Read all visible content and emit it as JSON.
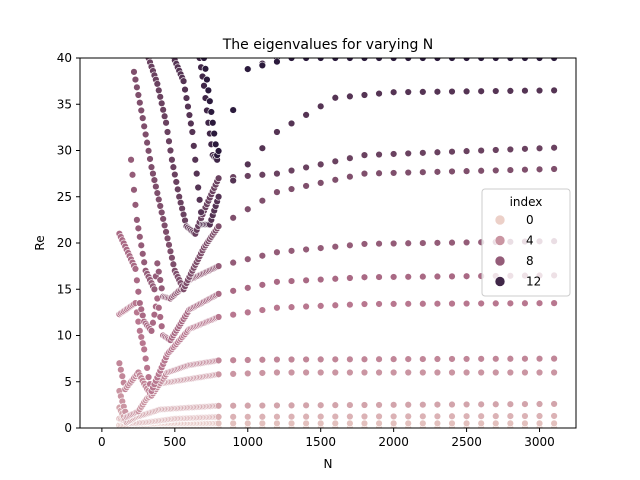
{
  "chart_data": {
    "type": "scatter",
    "title": "The eigenvalues for varying N",
    "xlabel": "N",
    "ylabel": "Re",
    "xlim": [
      -150,
      3250
    ],
    "ylim": [
      0,
      40
    ],
    "xticks": [
      0,
      500,
      1000,
      1500,
      2000,
      2500,
      3000
    ],
    "yticks": [
      0,
      5,
      10,
      15,
      20,
      25,
      30,
      35,
      40
    ],
    "grid": false,
    "legend": {
      "title": "index",
      "position": "right",
      "entries": [
        {
          "label": "0",
          "index": 0
        },
        {
          "label": "4",
          "index": 4
        },
        {
          "label": "8",
          "index": 8
        },
        {
          "label": "12",
          "index": 12
        }
      ]
    },
    "colormap": {
      "index_min": 0,
      "index_max": 13,
      "color_low": "#ecd0c8",
      "color_mid": "#b4708a",
      "color_high": "#2b1a3c"
    },
    "N_sampling": {
      "dense_start": 120,
      "dense_end": 790,
      "dense_step": 10,
      "sparse_start": 800,
      "sparse_end": 3100,
      "sparse_step": 100
    },
    "series": [
      {
        "index": 0,
        "values": [
          [
            100,
            0.0
          ],
          [
            3100,
            0.0
          ]
        ]
      },
      {
        "index": 1,
        "values": [
          [
            120,
            0.3
          ],
          [
            200,
            0.3
          ],
          [
            400,
            0.5
          ],
          [
            800,
            0.5
          ],
          [
            3100,
            0.5
          ]
        ]
      },
      {
        "index": 2,
        "values": [
          [
            120,
            1.0
          ],
          [
            200,
            0.5
          ],
          [
            300,
            0.6
          ],
          [
            500,
            1.0
          ],
          [
            800,
            1.2
          ],
          [
            3100,
            1.3
          ]
        ]
      },
      {
        "index": 3,
        "values": [
          [
            120,
            2.2
          ],
          [
            170,
            0.6
          ],
          [
            240,
            1.2
          ],
          [
            400,
            2.0
          ],
          [
            800,
            2.4
          ],
          [
            3100,
            2.6
          ]
        ]
      },
      {
        "index": 4,
        "values": [
          [
            120,
            4.0
          ],
          [
            170,
            1.2
          ],
          [
            250,
            1.8
          ],
          [
            300,
            3.0
          ],
          [
            400,
            4.8
          ],
          [
            800,
            5.8
          ],
          [
            1200,
            6.0
          ],
          [
            3100,
            6.0
          ]
        ]
      },
      {
        "index": 5,
        "values": [
          [
            120,
            7.0
          ],
          [
            160,
            4.2
          ],
          [
            250,
            6.0
          ],
          [
            300,
            4.5
          ],
          [
            340,
            3.5
          ],
          [
            450,
            6.0
          ],
          [
            600,
            6.8
          ],
          [
            800,
            7.3
          ],
          [
            1200,
            7.4
          ],
          [
            3100,
            7.5
          ]
        ]
      },
      {
        "index": 6,
        "values": [
          [
            120,
            12.3
          ],
          [
            230,
            13.5
          ],
          [
            260,
            10.5
          ],
          [
            290,
            8.5
          ],
          [
            320,
            5.5
          ],
          [
            340,
            4.0
          ],
          [
            450,
            8.0
          ],
          [
            600,
            10.7
          ],
          [
            800,
            12.0
          ],
          [
            1200,
            13.0
          ],
          [
            1800,
            13.4
          ],
          [
            3100,
            13.5
          ]
        ]
      },
      {
        "index": 7,
        "values": [
          [
            120,
            21.0
          ],
          [
            230,
            17.2
          ],
          [
            260,
            13.5
          ],
          [
            290,
            11.5
          ],
          [
            340,
            10.5
          ],
          [
            380,
            14.0
          ],
          [
            420,
            10.0
          ],
          [
            470,
            9.5
          ],
          [
            600,
            12.8
          ],
          [
            800,
            14.5
          ],
          [
            1200,
            15.8
          ],
          [
            1800,
            16.3
          ],
          [
            3100,
            16.5
          ]
        ]
      },
      {
        "index": 8,
        "values": [
          [
            200,
            29.0
          ],
          [
            240,
            22.5
          ],
          [
            300,
            17.0
          ],
          [
            360,
            15.0
          ],
          [
            380,
            17.8
          ],
          [
            420,
            14.2
          ],
          [
            470,
            14.0
          ],
          [
            540,
            15.0
          ],
          [
            600,
            16.0
          ],
          [
            800,
            17.5
          ],
          [
            1200,
            19.0
          ],
          [
            1800,
            19.9
          ],
          [
            3100,
            20.2
          ]
        ]
      },
      {
        "index": 9,
        "values": [
          [
            220,
            38.5
          ],
          [
            280,
            33.5
          ],
          [
            340,
            28.2
          ],
          [
            400,
            24.0
          ],
          [
            450,
            20.5
          ],
          [
            500,
            17.0
          ],
          [
            560,
            15.0
          ],
          [
            620,
            17.0
          ],
          [
            700,
            19.5
          ],
          [
            800,
            21.8
          ],
          [
            1200,
            25.5
          ],
          [
            1800,
            27.5
          ],
          [
            3100,
            28.0
          ]
        ]
      },
      {
        "index": 10,
        "values": [
          [
            320,
            40.0
          ],
          [
            380,
            37.2
          ],
          [
            440,
            33.0
          ],
          [
            480,
            29.0
          ],
          [
            530,
            25.0
          ],
          [
            580,
            21.8
          ],
          [
            640,
            21.0
          ],
          [
            700,
            23.5
          ],
          [
            800,
            27.0
          ],
          [
            1200,
            27.5
          ],
          [
            1800,
            29.5
          ],
          [
            3100,
            30.3
          ]
        ]
      },
      {
        "index": 11,
        "values": [
          [
            480,
            40.5
          ],
          [
            560,
            37.5
          ],
          [
            620,
            32.0
          ],
          [
            660,
            26.0
          ],
          [
            690,
            22.0
          ],
          [
            740,
            22.0
          ],
          [
            800,
            25.0
          ],
          [
            1200,
            32.0
          ],
          [
            1600,
            35.7
          ],
          [
            2000,
            36.3
          ],
          [
            3100,
            36.5
          ]
        ]
      },
      {
        "index": 12,
        "values": [
          [
            660,
            41.0
          ],
          [
            700,
            37.0
          ],
          [
            730,
            33.0
          ],
          [
            760,
            29.5
          ],
          [
            790,
            29.0
          ],
          [
            800,
            30.0
          ],
          [
            1000,
            38.8
          ],
          [
            1200,
            40.0
          ]
        ]
      },
      {
        "index": 13,
        "values": [
          [
            700,
            40.0
          ],
          [
            790,
            29.5
          ],
          [
            1000,
            38.8
          ],
          [
            1300,
            40.0
          ]
        ]
      }
    ]
  }
}
